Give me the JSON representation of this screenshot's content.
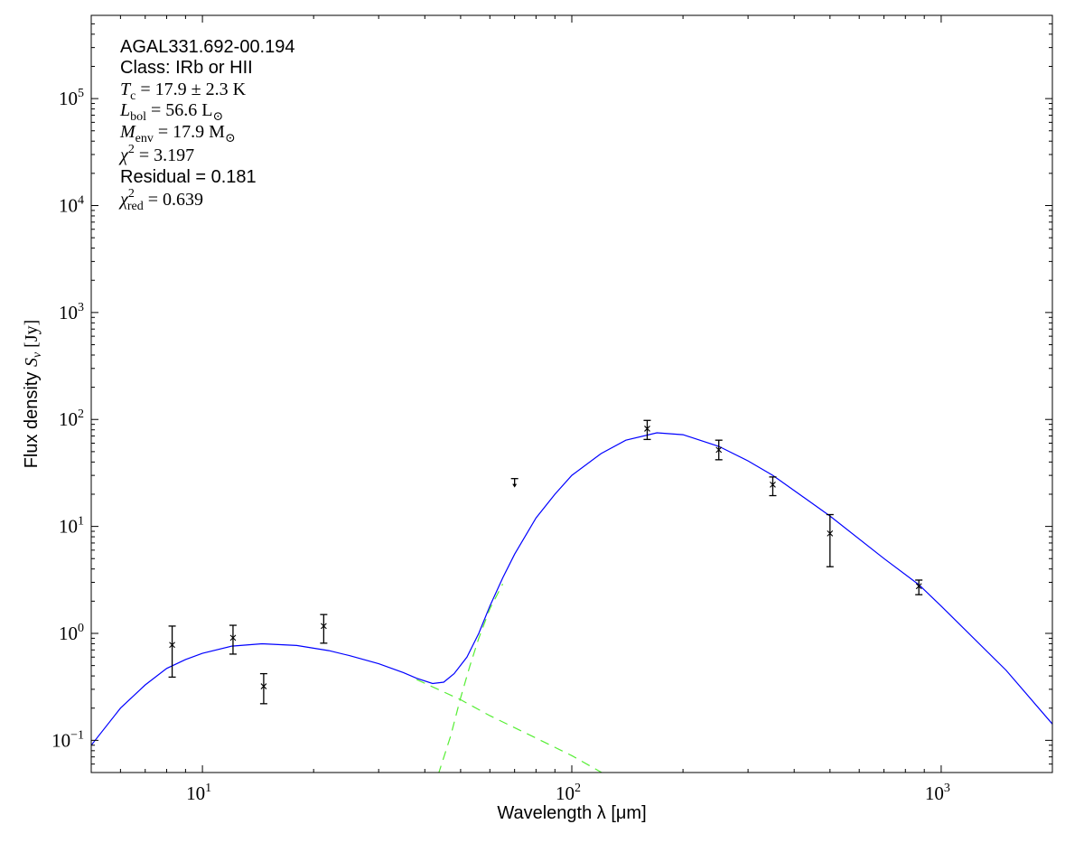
{
  "chart_data": {
    "type": "scatter",
    "xlabel": "Wavelength λ [μm]",
    "ylabel": "Flux density S_ν [Jy]",
    "xscale": "log",
    "yscale": "log",
    "xlim": [
      5,
      2000
    ],
    "ylim": [
      0.05,
      600000
    ],
    "x_tick_exponents": [
      "1",
      "2",
      "3"
    ],
    "y_tick_exponents": [
      "−1",
      "0",
      "1",
      "2",
      "3",
      "4",
      "5"
    ],
    "x_tick_values": [
      10,
      100,
      1000
    ],
    "y_tick_values": [
      0.1,
      1,
      10,
      100,
      1000,
      10000,
      100000
    ],
    "grid": false,
    "annotations": [
      {
        "text": "AGAL331.692-00.194",
        "style": "plain"
      },
      {
        "text": "Class: IRb or HII",
        "style": "plain"
      },
      {
        "sym": "T",
        "sub": "c",
        "rest": " = 17.9 ± 2.3 K",
        "style": "math"
      },
      {
        "sym": "L",
        "sub": "bol",
        "rest": " = 56.6 L",
        "sub2": "⊙",
        "style": "math"
      },
      {
        "sym": "M",
        "sub": "env",
        "rest": " = 17.9 M",
        "sub2": "⊙",
        "style": "math"
      },
      {
        "sym": "χ",
        "sup": "2",
        "rest": " = 3.197",
        "style": "math"
      },
      {
        "text": "Residual = 0.181",
        "style": "plain"
      },
      {
        "sym": "χ",
        "sup": "2",
        "sub": "red",
        "rest": " = 0.639",
        "style": "math"
      }
    ],
    "points": [
      {
        "x": 8.28,
        "y": 0.78,
        "ylo": 0.39,
        "yhi": 1.17
      },
      {
        "x": 12.1,
        "y": 0.91,
        "ylo": 0.64,
        "yhi": 1.19
      },
      {
        "x": 14.65,
        "y": 0.32,
        "ylo": 0.22,
        "yhi": 0.42
      },
      {
        "x": 21.3,
        "y": 1.17,
        "ylo": 0.81,
        "yhi": 1.5
      },
      {
        "x": 160,
        "y": 82,
        "ylo": 65,
        "yhi": 98
      },
      {
        "x": 250,
        "y": 52,
        "ylo": 42,
        "yhi": 64
      },
      {
        "x": 350,
        "y": 24.6,
        "ylo": 19.4,
        "yhi": 29
      },
      {
        "x": 500,
        "y": 8.6,
        "ylo": 4.2,
        "yhi": 12.9
      },
      {
        "x": 870,
        "y": 2.76,
        "ylo": 2.3,
        "yhi": 3.15
      }
    ],
    "upper_limits": [
      {
        "x": 70,
        "y": 28
      }
    ],
    "series": [
      {
        "role": "total model",
        "color": "#0000ff",
        "style": "solid",
        "x": [
          5,
          6,
          7,
          8,
          9,
          10,
          12,
          14.5,
          18,
          22,
          25,
          30,
          35,
          38,
          42,
          45,
          48,
          52,
          56,
          60,
          65,
          70,
          80,
          90,
          100,
          120,
          140,
          170,
          200,
          250,
          300,
          350,
          500,
          700,
          870,
          1000,
          1500,
          2000
        ],
        "y": [
          0.09,
          0.2,
          0.33,
          0.47,
          0.57,
          0.65,
          0.76,
          0.8,
          0.77,
          0.69,
          0.62,
          0.52,
          0.43,
          0.38,
          0.34,
          0.35,
          0.42,
          0.6,
          1.0,
          1.8,
          3.3,
          5.5,
          12,
          20,
          30,
          48,
          64,
          75,
          72,
          56,
          41,
          30,
          12.5,
          5,
          2.85,
          1.8,
          0.45,
          0.142
        ]
      },
      {
        "role": "warm component",
        "color": "#55ee33",
        "style": "dashed",
        "x": [
          38,
          50,
          60,
          80,
          100,
          123
        ],
        "y": [
          0.37,
          0.24,
          0.17,
          0.105,
          0.072,
          0.048
        ]
      },
      {
        "role": "cold component",
        "color": "#55ee33",
        "style": "dashed",
        "x": [
          43.5,
          47,
          50,
          53,
          56,
          60,
          65
        ],
        "y": [
          0.048,
          0.11,
          0.25,
          0.5,
          0.9,
          1.7,
          2.9
        ]
      }
    ]
  }
}
